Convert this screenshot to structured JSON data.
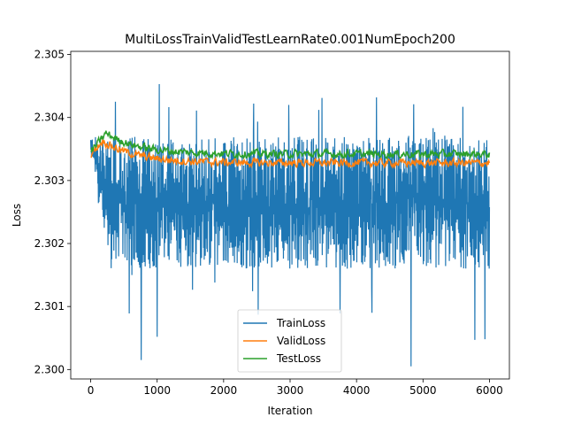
{
  "chart_data": {
    "type": "line",
    "title": "MultiLossTrainValidTestLearnRate0.001NumEpoch200",
    "xlabel": "Iteration",
    "ylabel": "Loss",
    "xlim": [
      -300,
      6300
    ],
    "ylim": [
      2.29985,
      2.30505
    ],
    "xticks": [
      0,
      1000,
      2000,
      3000,
      4000,
      5000,
      6000
    ],
    "xtick_labels": [
      "0",
      "1000",
      "2000",
      "3000",
      "4000",
      "5000",
      "6000"
    ],
    "yticks": [
      2.3,
      2.301,
      2.302,
      2.303,
      2.304,
      2.305
    ],
    "ytick_labels": [
      "2.300",
      "2.301",
      "2.302",
      "2.303",
      "2.304",
      "2.305"
    ],
    "grid": false,
    "legend_position": "lower-center",
    "series": [
      {
        "name": "TrainLoss",
        "color": "#1f77b4",
        "style": "noisy-band",
        "x_range": [
          0,
          6000
        ],
        "center_start": 2.3034,
        "center_steady": 2.3025,
        "band_upper": 2.3037,
        "band_lower": 2.3016,
        "spikes": [
          {
            "x": 370,
            "y": 2.30425
          },
          {
            "x": 1030,
            "y": 2.30453
          },
          {
            "x": 1590,
            "y": 2.30411
          },
          {
            "x": 2450,
            "y": 2.30422
          },
          {
            "x": 3480,
            "y": 2.30431
          },
          {
            "x": 4300,
            "y": 2.30432
          },
          {
            "x": 4860,
            "y": 2.30421
          },
          {
            "x": 5600,
            "y": 2.30417
          },
          {
            "x": 2980,
            "y": 2.3042
          },
          {
            "x": 2520,
            "y": 2.30087
          },
          {
            "x": 3750,
            "y": 2.30089
          },
          {
            "x": 4230,
            "y": 2.3009
          },
          {
            "x": 4820,
            "y": 2.30005
          },
          {
            "x": 760,
            "y": 2.30015
          },
          {
            "x": 5930,
            "y": 2.30048
          },
          {
            "x": 1000,
            "y": 2.30052
          },
          {
            "x": 5780,
            "y": 2.30047
          },
          {
            "x": 580,
            "y": 2.30089
          }
        ]
      },
      {
        "name": "ValidLoss",
        "color": "#ff7f0e",
        "style": "line",
        "x_range": [
          0,
          6000
        ],
        "start": 2.30342,
        "peak": {
          "x": 180,
          "y": 2.30363
        },
        "steady": 2.30328,
        "noise": 6e-05
      },
      {
        "name": "TestLoss",
        "color": "#2ca02c",
        "style": "line",
        "x_range": [
          0,
          6000
        ],
        "start": 2.30345,
        "peak": {
          "x": 230,
          "y": 2.30375
        },
        "steady": 2.30342,
        "noise": 6e-05
      }
    ]
  }
}
